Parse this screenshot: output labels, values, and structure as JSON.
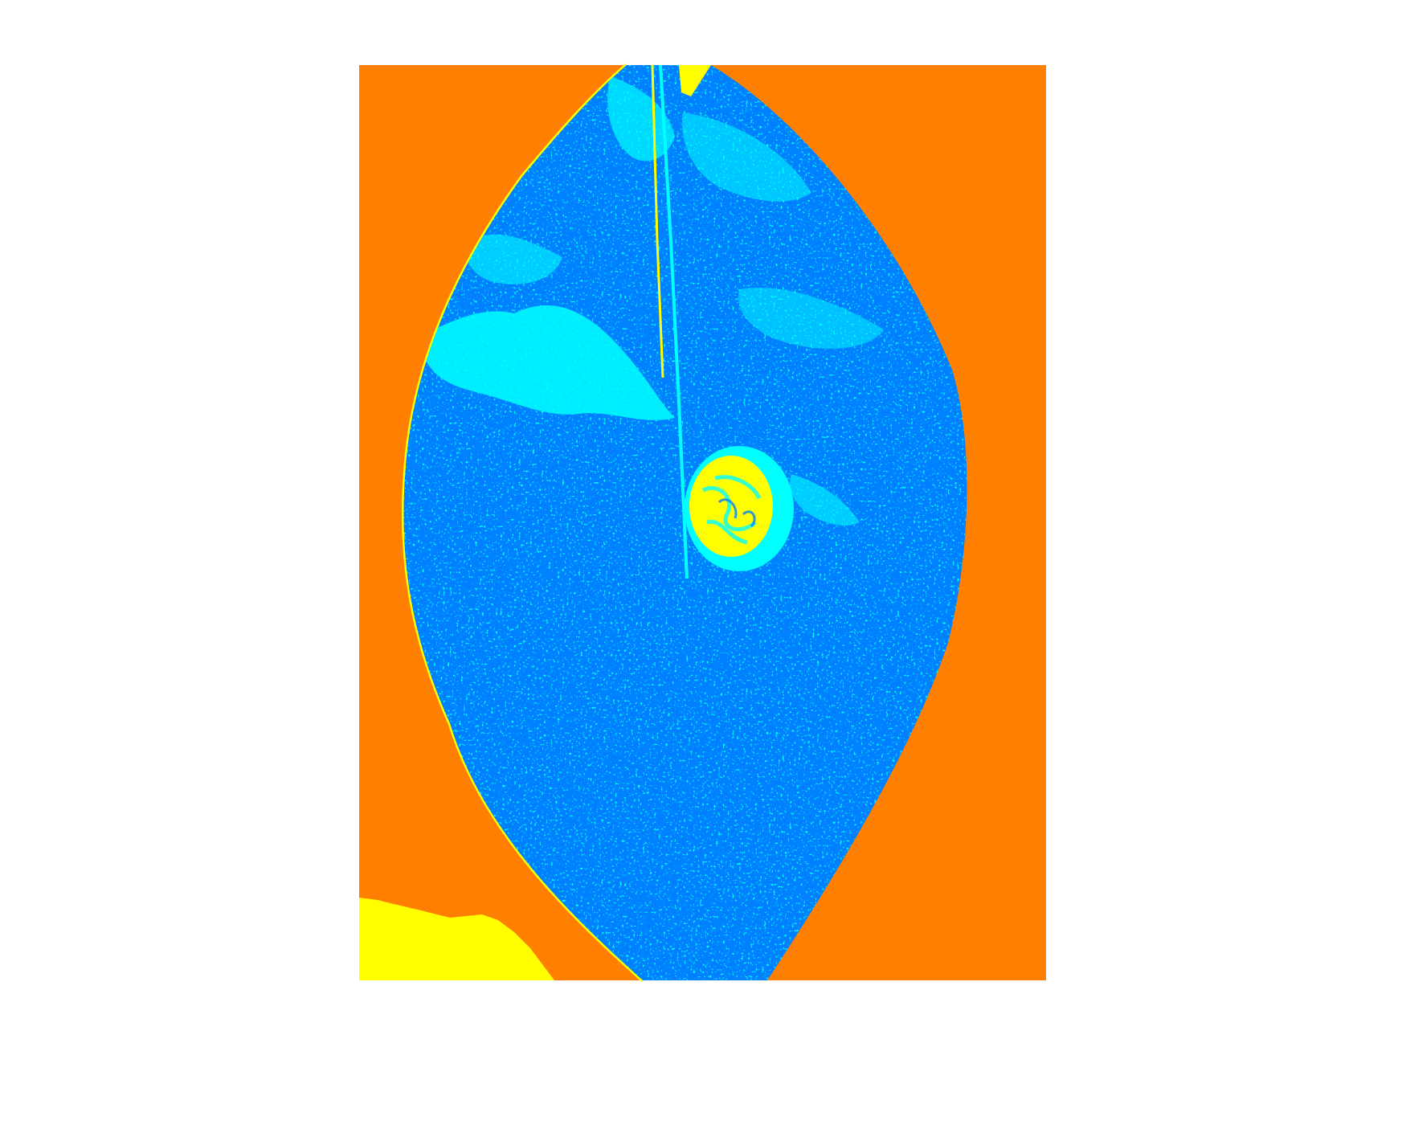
{
  "figure": {
    "background_color": "#ffffff"
  },
  "segmentation_image": {
    "description_type": "false-color leaf segmentation map",
    "class_colors": {
      "background": "#ff8000",
      "leaf_healthy": "#0080ff",
      "leaf_light_region": "#00ffff",
      "lesion_and_bright": "#ffff00"
    }
  }
}
